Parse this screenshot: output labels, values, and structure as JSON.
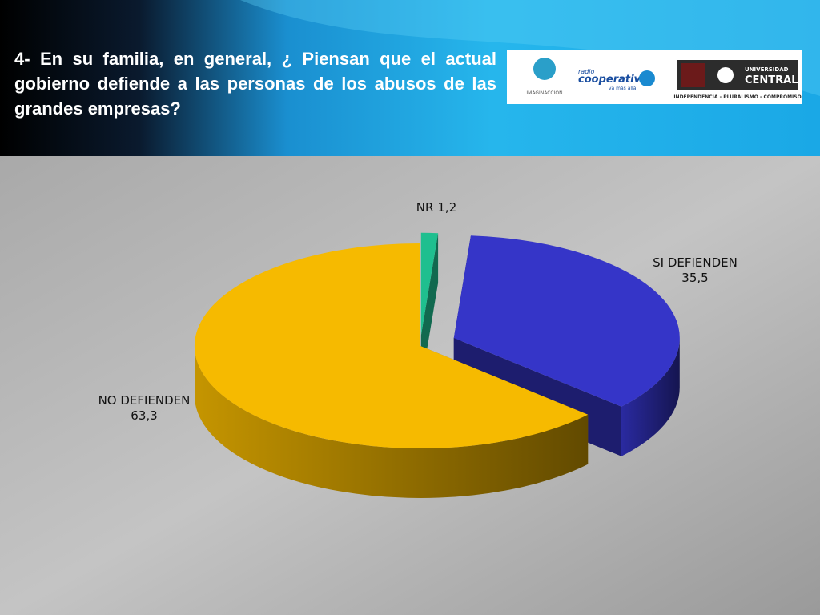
{
  "header": {
    "title": "4- En su familia, en general, ¿ Piensan que el actual gobierno defiende a las personas de los abusos de las grandes empresas?",
    "logos": [
      "IMAGINACCION",
      "radio",
      "cooperativa",
      "va más allá",
      "UNIVERSIDAD",
      "CENTRAL",
      "INDEPENDENCIA - PLURALISMO - COMPROMISO"
    ]
  },
  "chart_data": {
    "type": "pie",
    "categories": [
      "NR",
      "SI DEFIENDEN",
      "NO DEFIENDEN"
    ],
    "values": [
      1.2,
      35.5,
      63.3
    ],
    "value_labels": [
      "1,2",
      "35,5",
      "63,3"
    ],
    "colors": [
      "#1fbf8f",
      "#3535c8",
      "#f6ba00"
    ]
  }
}
